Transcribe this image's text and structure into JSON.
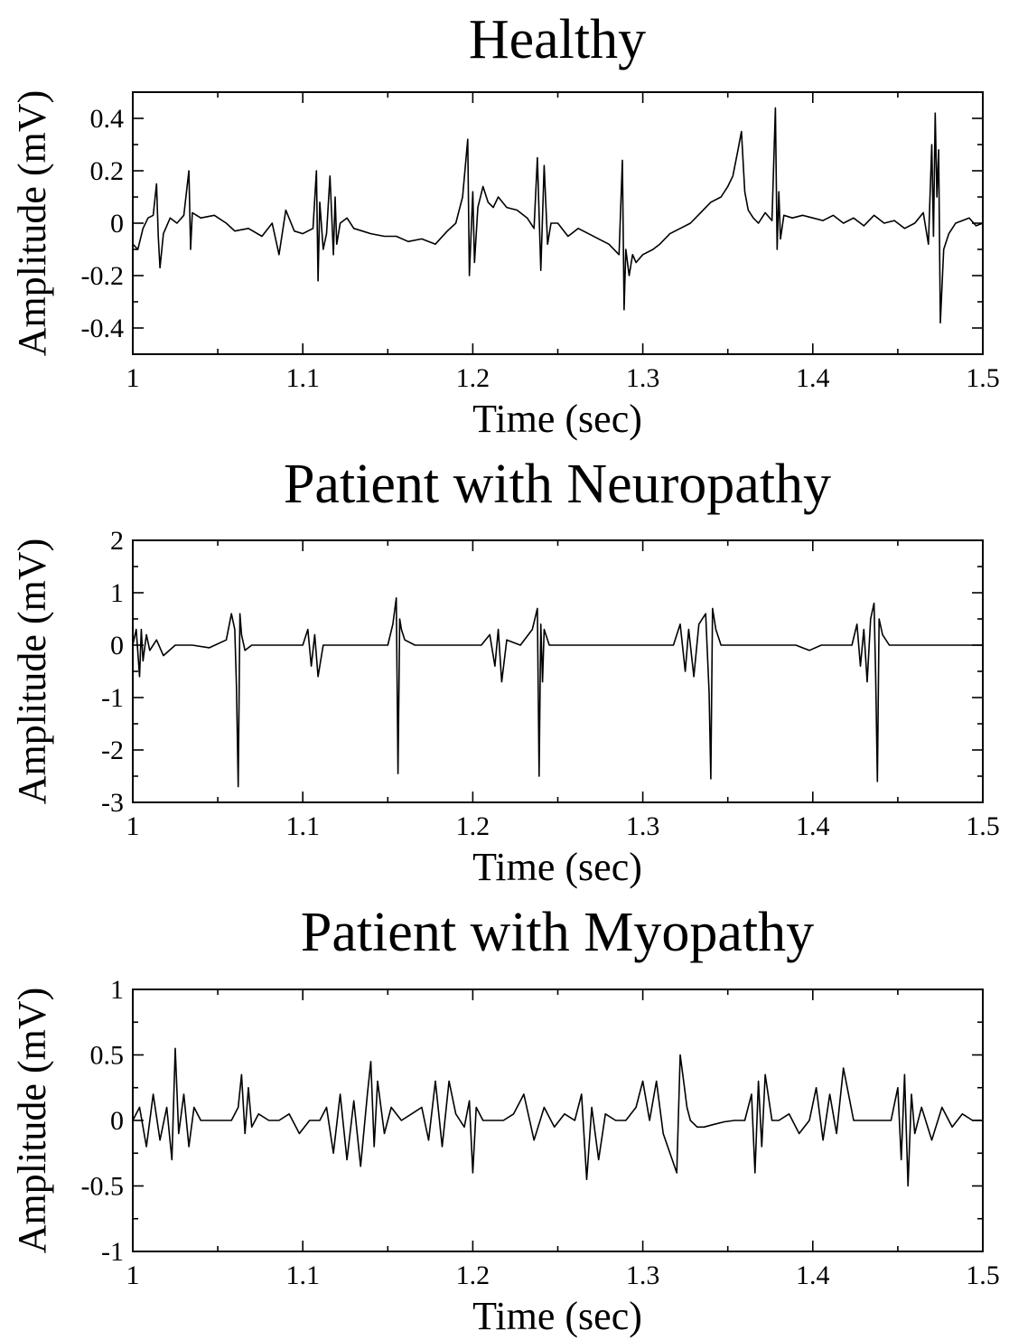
{
  "chart_data": [
    {
      "type": "line",
      "title": "Healthy",
      "xlabel": "Time (sec)",
      "ylabel": "Amplitude (mV)",
      "xlim": [
        1,
        1.5
      ],
      "ylim": [
        -0.5,
        0.5
      ],
      "xticks": [
        1,
        1.1,
        1.2,
        1.3,
        1.4,
        1.5
      ],
      "xtick_labels": [
        "1",
        "1.1",
        "1.2",
        "1.3",
        "1.4",
        "1.5"
      ],
      "yticks": [
        -0.4,
        -0.2,
        0,
        0.2,
        0.4
      ],
      "ytick_labels": [
        "-0.4",
        "-0.2",
        "0",
        "0.2",
        "0.4"
      ],
      "grid": false,
      "series": [
        {
          "x": [
            1.0,
            1.003,
            1.006,
            1.009,
            1.012,
            1.014,
            1.015,
            1.016,
            1.018,
            1.022,
            1.026,
            1.03,
            1.033,
            1.034,
            1.035,
            1.04,
            1.048,
            1.055,
            1.06,
            1.068,
            1.076,
            1.082,
            1.086,
            1.09,
            1.095,
            1.1,
            1.106,
            1.108,
            1.109,
            1.11,
            1.112,
            1.114,
            1.116,
            1.118,
            1.119,
            1.12,
            1.122,
            1.126,
            1.13,
            1.135,
            1.14,
            1.148,
            1.155,
            1.162,
            1.17,
            1.178,
            1.185,
            1.19,
            1.194,
            1.197,
            1.198,
            1.2,
            1.201,
            1.203,
            1.206,
            1.209,
            1.212,
            1.215,
            1.22,
            1.226,
            1.232,
            1.236,
            1.238,
            1.24,
            1.242,
            1.244,
            1.246,
            1.25,
            1.256,
            1.262,
            1.268,
            1.274,
            1.28,
            1.286,
            1.288,
            1.289,
            1.29,
            1.292,
            1.294,
            1.296,
            1.3,
            1.306,
            1.31,
            1.316,
            1.322,
            1.328,
            1.334,
            1.34,
            1.346,
            1.35,
            1.353,
            1.356,
            1.358,
            1.36,
            1.362,
            1.365,
            1.368,
            1.372,
            1.376,
            1.378,
            1.379,
            1.38,
            1.381,
            1.383,
            1.388,
            1.394,
            1.4,
            1.406,
            1.412,
            1.418,
            1.424,
            1.43,
            1.436,
            1.442,
            1.448,
            1.454,
            1.46,
            1.465,
            1.468,
            1.47,
            1.471,
            1.472,
            1.473,
            1.474,
            1.475,
            1.477,
            1.48,
            1.484,
            1.488,
            1.492,
            1.496,
            1.5
          ],
          "y": [
            -0.08,
            -0.1,
            -0.02,
            0.02,
            0.03,
            0.15,
            -0.05,
            -0.17,
            -0.04,
            0.02,
            0.0,
            0.03,
            0.2,
            -0.1,
            0.04,
            0.02,
            0.03,
            0.0,
            -0.03,
            -0.02,
            -0.05,
            0.0,
            -0.12,
            0.05,
            -0.03,
            -0.04,
            -0.02,
            0.2,
            -0.22,
            0.08,
            -0.1,
            -0.04,
            0.18,
            -0.12,
            0.1,
            -0.08,
            0.0,
            0.02,
            -0.02,
            -0.03,
            -0.04,
            -0.05,
            -0.05,
            -0.07,
            -0.06,
            -0.08,
            -0.03,
            0.0,
            0.1,
            0.32,
            -0.2,
            0.12,
            -0.15,
            0.06,
            0.14,
            0.08,
            0.06,
            0.1,
            0.06,
            0.05,
            0.02,
            -0.02,
            0.25,
            -0.18,
            0.22,
            -0.08,
            0.0,
            0.0,
            -0.05,
            -0.02,
            -0.04,
            -0.06,
            -0.08,
            -0.12,
            0.24,
            -0.33,
            -0.1,
            -0.2,
            -0.12,
            -0.15,
            -0.12,
            -0.1,
            -0.08,
            -0.04,
            -0.02,
            0.0,
            0.04,
            0.08,
            0.1,
            0.14,
            0.18,
            0.28,
            0.35,
            0.12,
            0.05,
            0.02,
            0.0,
            0.04,
            0.01,
            0.44,
            -0.1,
            0.12,
            -0.06,
            0.03,
            0.02,
            0.03,
            0.02,
            0.01,
            0.03,
            0.0,
            0.02,
            -0.01,
            0.03,
            0.0,
            0.01,
            -0.02,
            0.0,
            0.04,
            -0.08,
            0.3,
            -0.05,
            0.42,
            0.1,
            0.28,
            -0.38,
            -0.1,
            -0.04,
            0.0,
            0.01,
            0.02,
            -0.01,
            0.0
          ]
        }
      ]
    },
    {
      "type": "line",
      "title": "Patient with Neuropathy",
      "xlabel": "Time (sec)",
      "ylabel": "Amplitude (mV)",
      "xlim": [
        1,
        1.5
      ],
      "ylim": [
        -3,
        2
      ],
      "xticks": [
        1,
        1.1,
        1.2,
        1.3,
        1.4,
        1.5
      ],
      "xtick_labels": [
        "1",
        "1.1",
        "1.2",
        "1.3",
        "1.4",
        "1.5"
      ],
      "yticks": [
        -3,
        -2,
        -1,
        0,
        1,
        2
      ],
      "ytick_labels": [
        "-3",
        "-2",
        "-1",
        "0",
        "1",
        "2"
      ],
      "grid": false,
      "series": [
        {
          "x": [
            1.0,
            1.002,
            1.004,
            1.005,
            1.006,
            1.008,
            1.01,
            1.014,
            1.018,
            1.025,
            1.035,
            1.045,
            1.055,
            1.058,
            1.06,
            1.061,
            1.062,
            1.063,
            1.064,
            1.066,
            1.07,
            1.08,
            1.09,
            1.1,
            1.103,
            1.105,
            1.107,
            1.109,
            1.112,
            1.12,
            1.13,
            1.14,
            1.15,
            1.153,
            1.155,
            1.156,
            1.157,
            1.158,
            1.16,
            1.166,
            1.175,
            1.185,
            1.195,
            1.205,
            1.21,
            1.213,
            1.215,
            1.217,
            1.22,
            1.228,
            1.235,
            1.238,
            1.239,
            1.24,
            1.241,
            1.242,
            1.245,
            1.25,
            1.26,
            1.27,
            1.28,
            1.29,
            1.3,
            1.31,
            1.318,
            1.322,
            1.325,
            1.327,
            1.33,
            1.333,
            1.337,
            1.339,
            1.34,
            1.341,
            1.343,
            1.346,
            1.352,
            1.362,
            1.372,
            1.382,
            1.39,
            1.398,
            1.405,
            1.415,
            1.423,
            1.426,
            1.428,
            1.43,
            1.432,
            1.434,
            1.436,
            1.437,
            1.438,
            1.439,
            1.441,
            1.445,
            1.45,
            1.46,
            1.47,
            1.48,
            1.49,
            1.5
          ],
          "y": [
            0.0,
            0.3,
            -0.6,
            0.3,
            -0.3,
            0.2,
            -0.1,
            0.1,
            -0.2,
            0.0,
            0.0,
            -0.05,
            0.1,
            0.6,
            0.3,
            -0.8,
            -2.7,
            0.6,
            0.2,
            -0.1,
            0.0,
            0.0,
            0.0,
            0.0,
            0.3,
            -0.4,
            0.2,
            -0.6,
            0.0,
            0.0,
            0.0,
            0.0,
            0.0,
            0.4,
            0.9,
            -2.45,
            0.5,
            0.3,
            0.1,
            0.0,
            0.0,
            0.0,
            0.0,
            0.0,
            0.2,
            -0.4,
            0.3,
            -0.7,
            0.1,
            0.0,
            0.3,
            0.7,
            -2.5,
            0.4,
            -0.7,
            0.3,
            0.0,
            0.0,
            0.0,
            0.0,
            0.0,
            0.0,
            0.0,
            0.0,
            0.0,
            0.4,
            -0.5,
            0.3,
            -0.6,
            0.4,
            0.6,
            -0.9,
            -2.55,
            0.7,
            0.3,
            0.0,
            0.0,
            0.0,
            0.0,
            0.0,
            0.0,
            -0.1,
            0.0,
            0.0,
            0.0,
            0.4,
            -0.4,
            0.3,
            -0.7,
            0.5,
            0.8,
            -0.6,
            -2.6,
            0.5,
            0.2,
            0.0,
            0.0,
            0.0,
            0.0,
            0.0,
            0.0,
            0.0
          ]
        }
      ]
    },
    {
      "type": "line",
      "title": "Patient with Myopathy",
      "xlabel": "Time (sec)",
      "ylabel": "Amplitude (mV)",
      "xlim": [
        1,
        1.5
      ],
      "ylim": [
        -1,
        1
      ],
      "xticks": [
        1,
        1.1,
        1.2,
        1.3,
        1.4,
        1.5
      ],
      "xtick_labels": [
        "1",
        "1.1",
        "1.2",
        "1.3",
        "1.4",
        "1.5"
      ],
      "yticks": [
        -1,
        -0.5,
        0,
        0.5,
        1
      ],
      "ytick_labels": [
        "-1",
        "-0.5",
        "0",
        "0.5",
        "1"
      ],
      "grid": false,
      "series": [
        {
          "x": [
            1.0,
            1.004,
            1.008,
            1.012,
            1.016,
            1.02,
            1.023,
            1.025,
            1.027,
            1.03,
            1.033,
            1.036,
            1.04,
            1.046,
            1.052,
            1.058,
            1.062,
            1.064,
            1.066,
            1.068,
            1.07,
            1.074,
            1.08,
            1.086,
            1.092,
            1.098,
            1.104,
            1.11,
            1.114,
            1.118,
            1.122,
            1.126,
            1.13,
            1.134,
            1.138,
            1.14,
            1.142,
            1.144,
            1.148,
            1.152,
            1.158,
            1.164,
            1.17,
            1.174,
            1.178,
            1.182,
            1.186,
            1.19,
            1.195,
            1.198,
            1.2,
            1.202,
            1.206,
            1.212,
            1.218,
            1.224,
            1.23,
            1.236,
            1.242,
            1.248,
            1.254,
            1.26,
            1.264,
            1.267,
            1.27,
            1.274,
            1.278,
            1.284,
            1.29,
            1.296,
            1.3,
            1.304,
            1.308,
            1.312,
            1.316,
            1.32,
            1.322,
            1.324,
            1.326,
            1.328,
            1.332,
            1.336,
            1.342,
            1.348,
            1.354,
            1.36,
            1.364,
            1.366,
            1.368,
            1.37,
            1.372,
            1.376,
            1.38,
            1.386,
            1.392,
            1.398,
            1.402,
            1.406,
            1.41,
            1.414,
            1.418,
            1.424,
            1.432,
            1.44,
            1.446,
            1.45,
            1.452,
            1.454,
            1.456,
            1.458,
            1.46,
            1.464,
            1.47,
            1.476,
            1.482,
            1.488,
            1.494,
            1.5
          ],
          "y": [
            0.0,
            0.1,
            -0.2,
            0.2,
            -0.15,
            0.1,
            -0.3,
            0.55,
            -0.1,
            0.2,
            -0.2,
            0.1,
            0.0,
            0.0,
            0.0,
            0.0,
            0.1,
            0.35,
            -0.1,
            0.25,
            -0.05,
            0.05,
            0.0,
            0.0,
            0.05,
            -0.1,
            0.0,
            0.0,
            0.1,
            -0.25,
            0.2,
            -0.3,
            0.15,
            -0.35,
            0.2,
            0.45,
            -0.2,
            0.3,
            -0.1,
            0.1,
            0.0,
            0.05,
            0.1,
            -0.15,
            0.3,
            -0.2,
            0.3,
            0.05,
            -0.05,
            0.15,
            -0.4,
            0.1,
            0.0,
            0.0,
            0.0,
            0.05,
            0.2,
            -0.15,
            0.1,
            -0.05,
            0.05,
            0.0,
            0.2,
            -0.45,
            0.1,
            -0.3,
            0.05,
            0.0,
            0.0,
            0.1,
            0.3,
            0.0,
            0.3,
            -0.1,
            -0.25,
            -0.4,
            0.5,
            0.3,
            0.1,
            0.0,
            -0.05,
            -0.05,
            -0.03,
            -0.01,
            0.0,
            0.0,
            0.2,
            -0.4,
            0.3,
            -0.2,
            0.35,
            0.0,
            0.0,
            0.05,
            -0.1,
            0.0,
            0.25,
            -0.15,
            0.2,
            -0.1,
            0.4,
            0.0,
            0.0,
            0.0,
            0.0,
            0.25,
            -0.3,
            0.35,
            -0.5,
            0.2,
            -0.1,
            0.1,
            -0.15,
            0.1,
            -0.05,
            0.05,
            0.0,
            0.0
          ]
        }
      ]
    }
  ]
}
